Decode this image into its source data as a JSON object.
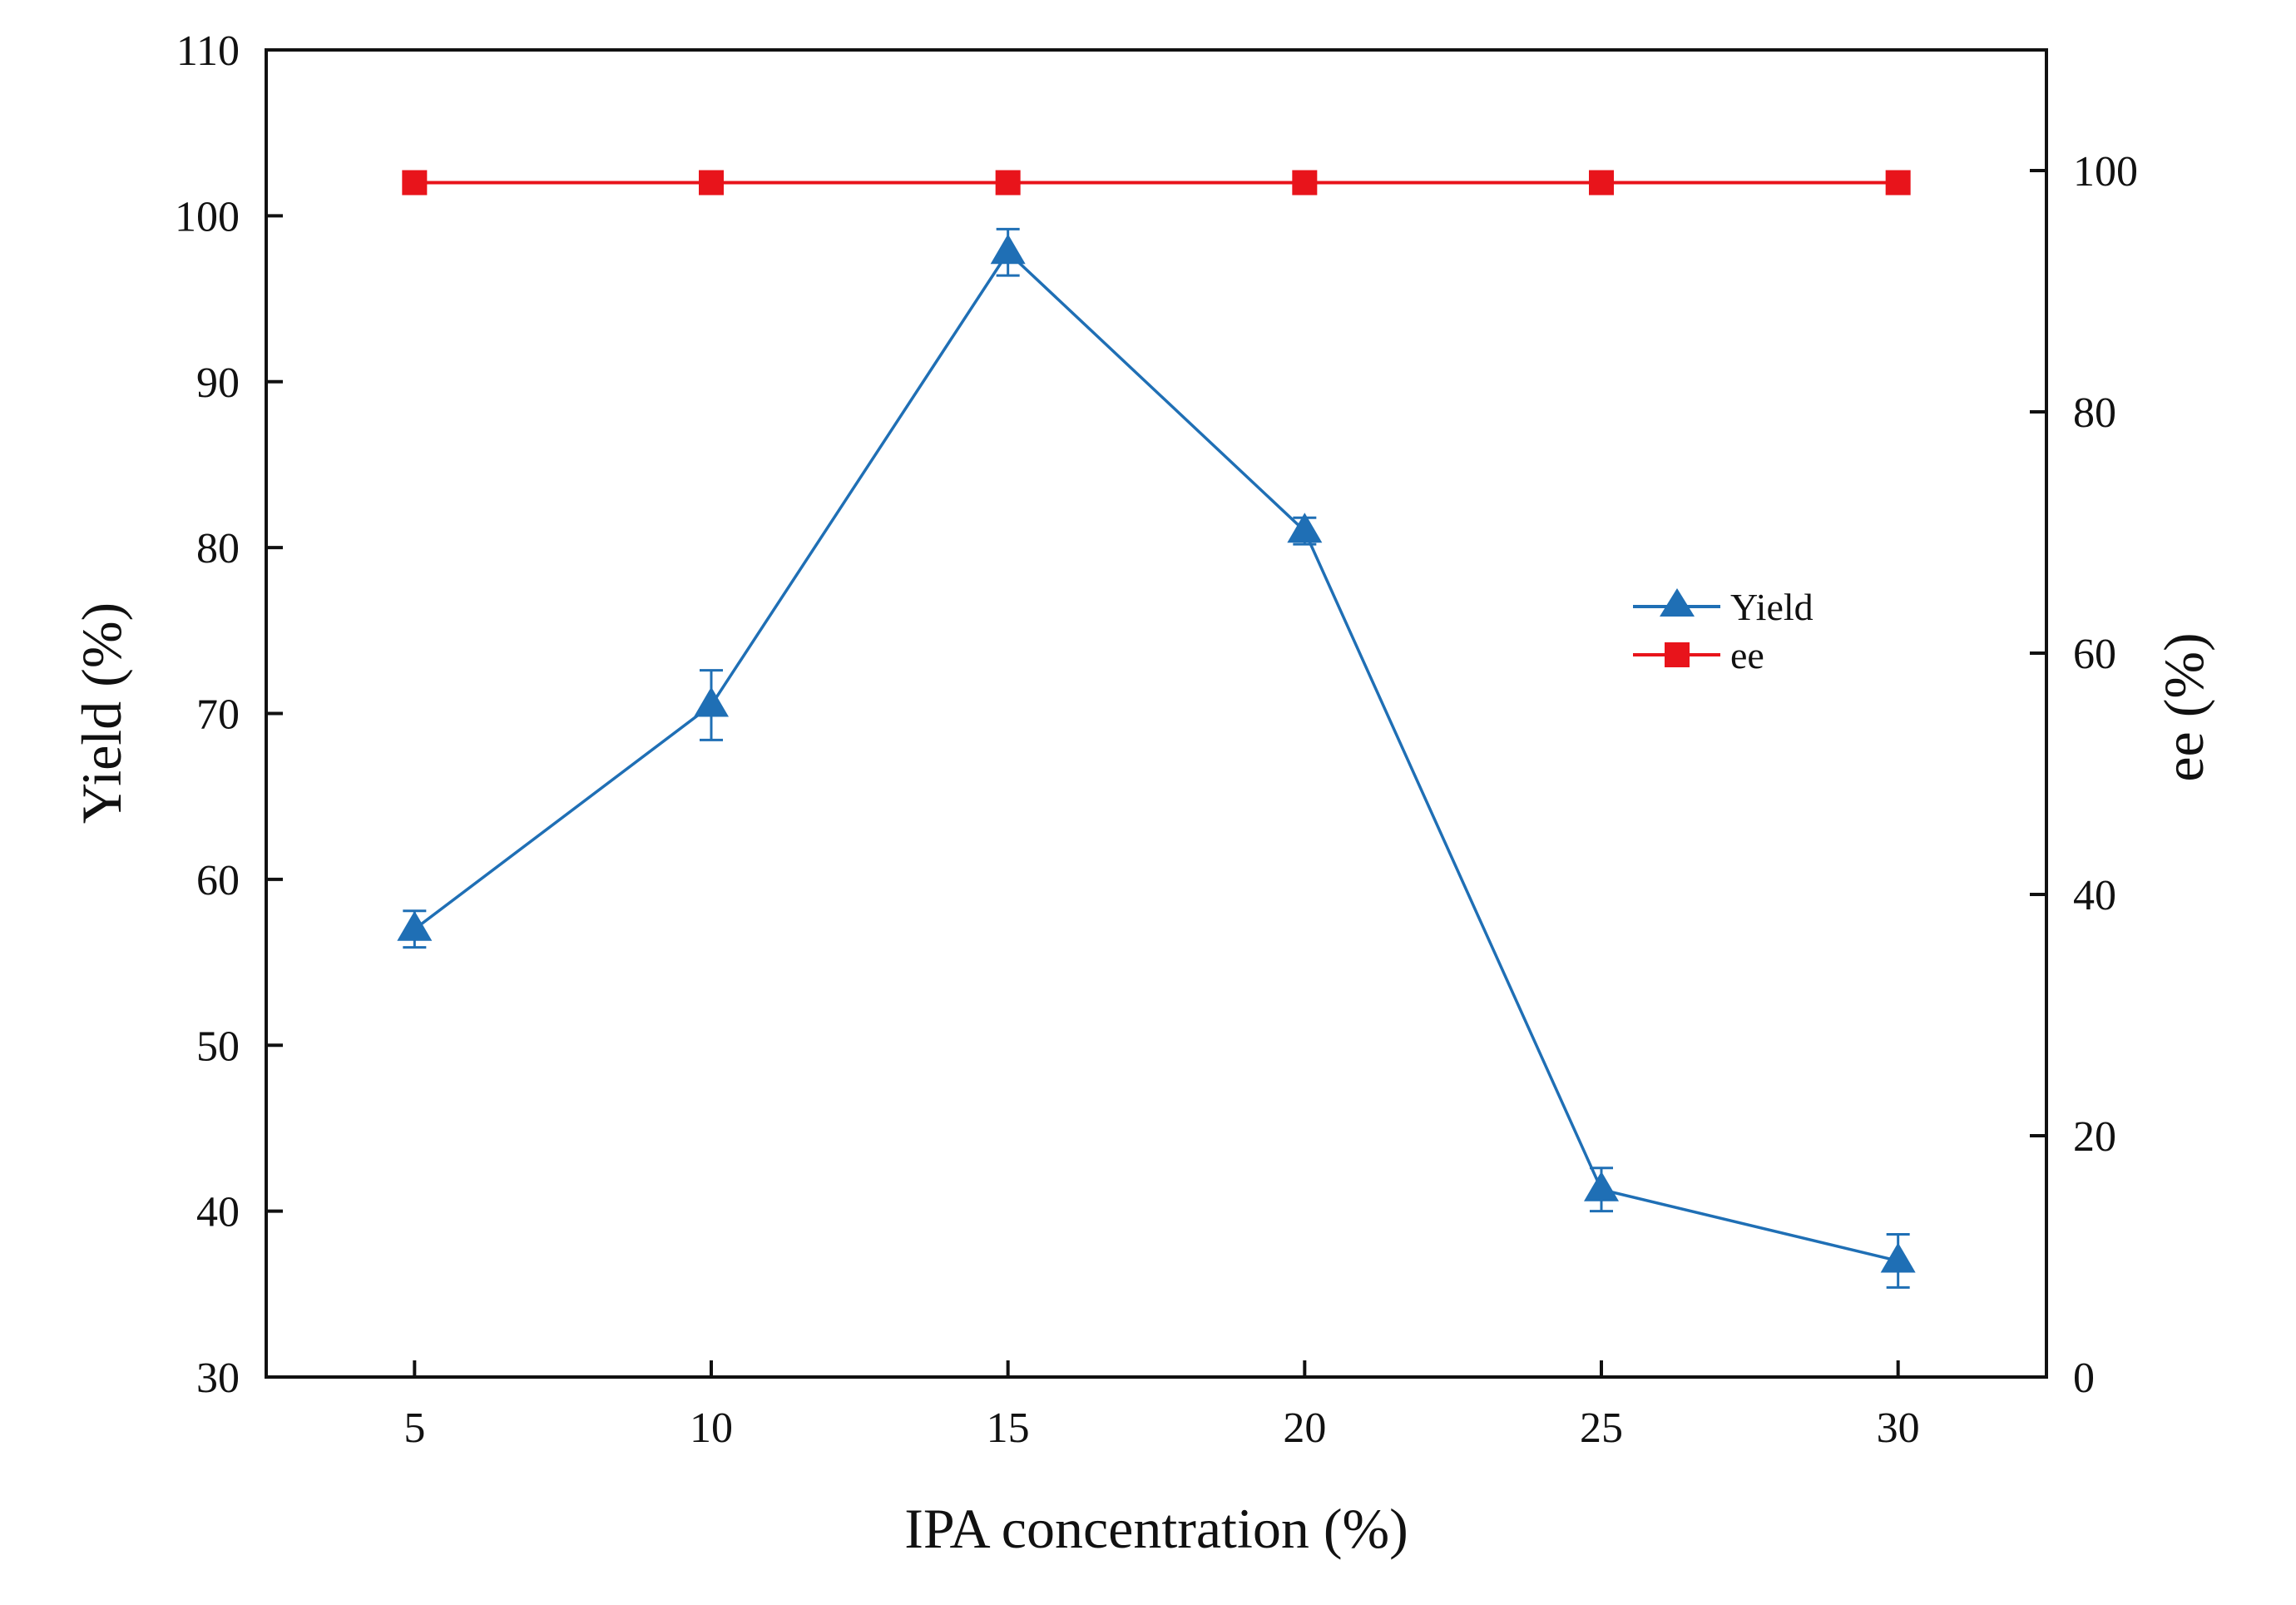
{
  "chart_data": {
    "type": "line",
    "title": "",
    "xlabel": "IPA concentration (%)",
    "ylabel": "Yield (%)",
    "y2label": "ee (%)",
    "x": [
      5,
      10,
      15,
      20,
      25,
      30
    ],
    "xlim": [
      2.5,
      32.5
    ],
    "ylim": [
      30,
      110
    ],
    "y2lim": [
      0,
      110
    ],
    "x_ticks": [
      "5",
      "10",
      "15",
      "20",
      "25",
      "30"
    ],
    "y_ticks": [
      "30",
      "40",
      "50",
      "60",
      "70",
      "80",
      "90",
      "100",
      "110"
    ],
    "y2_ticks": [
      "0",
      "20",
      "40",
      "60",
      "80",
      "100"
    ],
    "grid": false,
    "legend_position": "right-middle",
    "series": [
      {
        "name": "Yield",
        "axis": "left",
        "marker": "triangle",
        "color": "#1f6fb5",
        "values": [
          57.0,
          70.5,
          97.8,
          81.0,
          41.3,
          37.0
        ],
        "errors": [
          1.1,
          2.1,
          1.4,
          0.8,
          1.3,
          1.6
        ]
      },
      {
        "name": "ee",
        "axis": "right",
        "marker": "square",
        "color": "#e8141b",
        "values": [
          99,
          99,
          99,
          99,
          99,
          99
        ]
      }
    ]
  }
}
